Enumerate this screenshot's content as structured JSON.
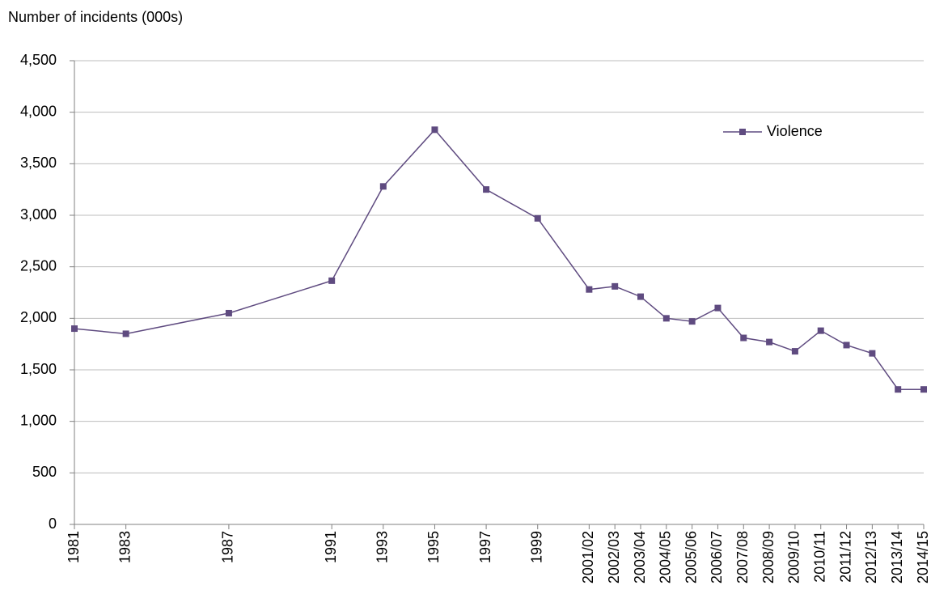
{
  "chart_data": {
    "type": "line",
    "title": "Number of incidents (000s)",
    "x": [
      1981,
      1983,
      1987,
      1991,
      1993,
      1995,
      1997,
      1999,
      2001,
      2002,
      2003,
      2004,
      2005,
      2006,
      2007,
      2008,
      2009,
      2010,
      2011,
      2012,
      2013,
      2014
    ],
    "xlim": [
      1981,
      2014
    ],
    "xticks": [
      1981,
      1983,
      1987,
      1991,
      1993,
      1995,
      1997,
      1999,
      {
        "value": 2001,
        "label": "2001/02"
      },
      {
        "value": 2002,
        "label": "2002/03"
      },
      {
        "value": 2003,
        "label": "2003/04"
      },
      {
        "value": 2004,
        "label": "2004/05"
      },
      {
        "value": 2005,
        "label": "2005/06"
      },
      {
        "value": 2006,
        "label": "2006/07"
      },
      {
        "value": 2007,
        "label": "2007/08"
      },
      {
        "value": 2008,
        "label": "2008/09"
      },
      {
        "value": 2009,
        "label": "2009/10"
      },
      {
        "value": 2010,
        "label": "2010/11"
      },
      {
        "value": 2011,
        "label": "2011/12"
      },
      {
        "value": 2012,
        "label": "2012/13"
      },
      {
        "value": 2013,
        "label": "2013/14"
      },
      {
        "value": 2014,
        "label": "2014/15"
      }
    ],
    "series": [
      {
        "name": "Violence",
        "color": "#5f4b80",
        "values": [
          1900,
          1850,
          2050,
          2365,
          3280,
          3830,
          3250,
          2970,
          2280,
          2310,
          2210,
          2000,
          1970,
          2100,
          1810,
          1770,
          1680,
          1880,
          1740,
          1660,
          1310,
          1310
        ]
      }
    ],
    "ylim": [
      0,
      4500
    ],
    "yticks": [
      0,
      500,
      {
        "value": 1000,
        "label": "1,000"
      },
      {
        "value": 1500,
        "label": "1,500"
      },
      {
        "value": 2000,
        "label": "2,000"
      },
      {
        "value": 2500,
        "label": "2,500"
      },
      {
        "value": 3000,
        "label": "3,000"
      },
      {
        "value": 3500,
        "label": "3,500"
      },
      {
        "value": 4000,
        "label": "4,000"
      },
      {
        "value": 4500,
        "label": "4,500"
      }
    ],
    "grid": true,
    "legend": "upper right"
  }
}
